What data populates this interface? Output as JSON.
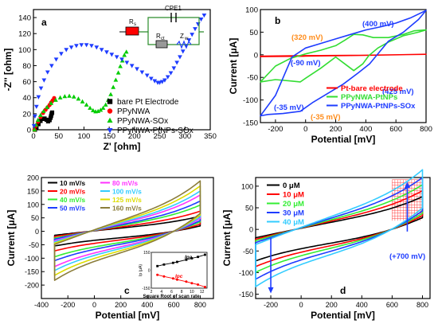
{
  "chart_data": [
    {
      "panel": "a",
      "type": "scatter",
      "panel_label": "a",
      "xlabel": "Z' [ohm]",
      "ylabel": "-Z'' [ohm]",
      "xlim": [
        0,
        350
      ],
      "ylim": [
        0,
        150
      ],
      "xticks": [
        0,
        50,
        100,
        150,
        200,
        250,
        300,
        350
      ],
      "yticks": [
        0,
        20,
        40,
        60,
        80,
        100,
        120,
        140
      ],
      "legend_position": "bottom-right",
      "inset": {
        "title": "CPE1",
        "labels": [
          "R",
          "R",
          "Z"
        ],
        "subscripts": [
          "s",
          "ct",
          "w"
        ]
      },
      "series": [
        {
          "name": "bare Pt Electrode",
          "marker": "square",
          "color": "#000000",
          "points": [
            [
              3,
              0
            ],
            [
              6,
              3
            ],
            [
              10,
              7
            ],
            [
              14,
              11
            ],
            [
              18,
              13.5
            ],
            [
              22,
              14
            ],
            [
              26,
              12.5
            ],
            [
              29,
              10.5
            ],
            [
              32,
              12
            ],
            [
              34,
              15
            ],
            [
              35,
              17.5
            ],
            [
              36,
              20
            ],
            [
              37,
              21.5
            ]
          ]
        },
        {
          "name": "PPyNWA",
          "marker": "circle",
          "color": "#ff0000",
          "points": [
            [
              2,
              0
            ],
            [
              5,
              5
            ],
            [
              9,
              10
            ],
            [
              14,
              16
            ],
            [
              19,
              21
            ],
            [
              24,
              25
            ],
            [
              28,
              28
            ],
            [
              32,
              31
            ],
            [
              35,
              34
            ],
            [
              38,
              36.5
            ],
            [
              41,
              39.5
            ]
          ]
        },
        {
          "name": "PPyNWA-SOx",
          "marker": "triangle-up",
          "color": "#00cc00",
          "points": [
            [
              2,
              0
            ],
            [
              5,
              6
            ],
            [
              9,
              12
            ],
            [
              14,
              18
            ],
            [
              20,
              23
            ],
            [
              27,
              28
            ],
            [
              35,
              33
            ],
            [
              44,
              37
            ],
            [
              53,
              40
            ],
            [
              62,
              41.5
            ],
            [
              71,
              42
            ],
            [
              80,
              41
            ],
            [
              89,
              38.5
            ],
            [
              97,
              35
            ],
            [
              105,
              31
            ],
            [
              112,
              27
            ],
            [
              118,
              24
            ],
            [
              123,
              22.5
            ],
            [
              128,
              23
            ],
            [
              133,
              24.5
            ],
            [
              138,
              27
            ],
            [
              143,
              31
            ],
            [
              148,
              37
            ],
            [
              153,
              44
            ],
            [
              158,
              53
            ],
            [
              163,
              62
            ],
            [
              168,
              71
            ],
            [
              172,
              79
            ],
            [
              176,
              86
            ],
            [
              180,
              93
            ],
            [
              184,
              97
            ]
          ]
        },
        {
          "name": "PPyNWA-PtNPs-SOx",
          "marker": "triangle-down",
          "color": "#1e3cff",
          "points": [
            [
              1,
              5
            ],
            [
              3,
              17
            ],
            [
              6,
              29
            ],
            [
              10,
              41
            ],
            [
              15,
              52
            ],
            [
              21,
              62
            ],
            [
              28,
              72
            ],
            [
              36,
              80
            ],
            [
              45,
              88
            ],
            [
              55,
              95
            ],
            [
              65,
              100
            ],
            [
              75,
              103
            ],
            [
              85,
              105
            ],
            [
              95,
              106
            ],
            [
              105,
              106
            ],
            [
              115,
              105
            ],
            [
              125,
              103
            ],
            [
              135,
              100
            ],
            [
              145,
              97
            ],
            [
              155,
              94
            ],
            [
              165,
              91
            ],
            [
              175,
              88
            ],
            [
              185,
              84
            ],
            [
              195,
              80
            ],
            [
              205,
              76
            ],
            [
              215,
              72
            ],
            [
              225,
              68
            ],
            [
              233,
              64
            ],
            [
              240,
              61
            ],
            [
              246,
              59
            ],
            [
              250,
              59
            ],
            [
              255,
              60
            ],
            [
              260,
              62
            ],
            [
              266,
              66
            ],
            [
              272,
              71
            ],
            [
              278,
              77
            ],
            [
              284,
              84
            ],
            [
              290,
              91
            ],
            [
              296,
              98
            ],
            [
              302,
              105
            ],
            [
              308,
              112
            ],
            [
              314,
              119
            ],
            [
              320,
              126
            ],
            [
              326,
              132
            ],
            [
              332,
              138
            ],
            [
              338,
              143
            ]
          ]
        }
      ]
    },
    {
      "panel": "b",
      "type": "line",
      "panel_label": "b",
      "xlabel": "Potential [mV]",
      "ylabel": "Current [μA]",
      "xlim": [
        -300,
        800
      ],
      "ylim": [
        -150,
        100
      ],
      "xticks": [
        -200,
        0,
        200,
        400,
        600,
        800
      ],
      "yticks": [
        -150,
        -100,
        -50,
        0,
        50,
        100
      ],
      "legend_position": "bottom-right",
      "annotations": [
        {
          "text": "(320 mV)",
          "color": "#ff8c1a"
        },
        {
          "text": "(400 mV)",
          "color": "#1e3cff"
        },
        {
          "text": "(-90 mV)",
          "color": "#1e3cff"
        },
        {
          "text": "(425 mV)",
          "color": "#1e3cff"
        },
        {
          "text": "(-35 mV)",
          "color": "#1e3cff"
        },
        {
          "text": "(-35 mV)",
          "color": "#ff8c1a"
        }
      ],
      "series": [
        {
          "name": "Pt-bare electrode",
          "color": "#ff0000",
          "points": [
            [
              -300,
              -3
            ],
            [
              0,
              -2
            ],
            [
              400,
              -1
            ],
            [
              800,
              1
            ],
            [
              400,
              -1
            ],
            [
              0,
              -3
            ],
            [
              -300,
              -4
            ]
          ]
        },
        {
          "name": "PPyNWA-PtNPs",
          "color": "#33dd33",
          "points": [
            [
              -300,
              -60
            ],
            [
              -200,
              -25
            ],
            [
              -100,
              -8
            ],
            [
              0,
              2
            ],
            [
              100,
              10
            ],
            [
              200,
              20
            ],
            [
              260,
              32
            ],
            [
              320,
              45
            ],
            [
              380,
              44
            ],
            [
              450,
              38
            ],
            [
              550,
              38
            ],
            [
              650,
              45
            ],
            [
              720,
              53
            ],
            [
              800,
              55
            ],
            [
              750,
              50
            ],
            [
              650,
              42
            ],
            [
              550,
              28
            ],
            [
              480,
              15
            ],
            [
              420,
              -2
            ],
            [
              380,
              -20
            ],
            [
              320,
              -35
            ],
            [
              260,
              -20
            ],
            [
              200,
              -5
            ],
            [
              100,
              -30
            ],
            [
              0,
              -52
            ],
            [
              -35,
              -60
            ],
            [
              -100,
              -58
            ],
            [
              -200,
              -55
            ],
            [
              -300,
              -60
            ]
          ]
        },
        {
          "name": "PPyNWA-PtNPs-SOx",
          "color": "#1e3cff",
          "points": [
            [
              -300,
              -135
            ],
            [
              -200,
              -90
            ],
            [
              -90,
              -5
            ],
            [
              0,
              15
            ],
            [
              100,
              25
            ],
            [
              200,
              35
            ],
            [
              300,
              45
            ],
            [
              400,
              55
            ],
            [
              500,
              62
            ],
            [
              600,
              70
            ],
            [
              700,
              82
            ],
            [
              800,
              98
            ],
            [
              750,
              78
            ],
            [
              650,
              50
            ],
            [
              550,
              30
            ],
            [
              425,
              -20
            ],
            [
              350,
              -40
            ],
            [
              250,
              -65
            ],
            [
              150,
              -85
            ],
            [
              50,
              -105
            ],
            [
              -35,
              -125
            ],
            [
              -150,
              -130
            ],
            [
              -250,
              -132
            ],
            [
              -300,
              -135
            ]
          ]
        }
      ]
    },
    {
      "panel": "c",
      "type": "line",
      "panel_label": "c",
      "xlabel": "Potential [mV]",
      "ylabel": "Current [μA]",
      "xlim": [
        -400,
        900
      ],
      "ylim": [
        -250,
        200
      ],
      "xticks": [
        -400,
        -200,
        0,
        200,
        400,
        600,
        800
      ],
      "yticks": [
        -200,
        -150,
        -100,
        -50,
        0,
        50,
        100,
        150,
        200
      ],
      "legend_position": "top-left",
      "series": [
        {
          "name": "10 mV/s",
          "color": "#000000",
          "scale": 0.3
        },
        {
          "name": "20 mV/s",
          "color": "#ff0000",
          "scale": 0.4
        },
        {
          "name": "40 mV/s",
          "color": "#33ee33",
          "scale": 0.52
        },
        {
          "name": "50 mV/s",
          "color": "#1e3cff",
          "scale": 0.6
        },
        {
          "name": "80 mV/s",
          "color": "#ff33ff",
          "scale": 0.72
        },
        {
          "name": "100 mV/s",
          "color": "#33ccff",
          "scale": 0.8
        },
        {
          "name": "125 mV/s",
          "color": "#dddd00",
          "scale": 0.9
        },
        {
          "name": "160 mV/s",
          "color": "#8b7d3a",
          "scale": 1.0
        }
      ],
      "inset": {
        "xlabel": "Square Root of scan rate",
        "ylabel": "Ip (μA)",
        "xticks": [
          2,
          4,
          6,
          8,
          10,
          12
        ],
        "yticks": [
          -150,
          -100,
          -50,
          0,
          50,
          100,
          150
        ],
        "xlim": [
          2,
          13
        ],
        "ylim": [
          -150,
          150
        ],
        "series": [
          {
            "name": "Ipa",
            "color": "#000000",
            "x": [
              3.2,
              4.5,
              6.3,
              7.1,
              8.9,
              10.0,
              11.2,
              12.6
            ],
            "y": [
              35,
              48,
              62,
              70,
              88,
              100,
              112,
              130
            ]
          },
          {
            "name": "Ipc",
            "color": "#ff0000",
            "x": [
              3.2,
              4.5,
              6.3,
              7.1,
              8.9,
              10.0,
              11.2,
              12.6
            ],
            "y": [
              -38,
              -52,
              -68,
              -78,
              -95,
              -108,
              -120,
              -140
            ]
          }
        ]
      }
    },
    {
      "panel": "d",
      "type": "line",
      "panel_label": "d",
      "xlabel": "Potential [mV]",
      "ylabel": "Current [μA]",
      "xlim": [
        -300,
        850
      ],
      "ylim": [
        -160,
        120
      ],
      "xticks": [
        -200,
        0,
        200,
        400,
        600,
        800
      ],
      "yticks": [
        -150,
        -100,
        -50,
        0,
        50,
        100
      ],
      "legend_position": "top-left",
      "annotation": "(+700 mV)",
      "series": [
        {
          "name": "0 μM",
          "color": "#000000",
          "scale": 0.55
        },
        {
          "name": "10 μM",
          "color": "#ff0000",
          "scale": 0.65
        },
        {
          "name": "20 μM",
          "color": "#33ee33",
          "scale": 0.75
        },
        {
          "name": "30 μM",
          "color": "#1e3cff",
          "scale": 0.87
        },
        {
          "name": "40 μM",
          "color": "#33ccff",
          "scale": 1.0
        }
      ]
    }
  ]
}
